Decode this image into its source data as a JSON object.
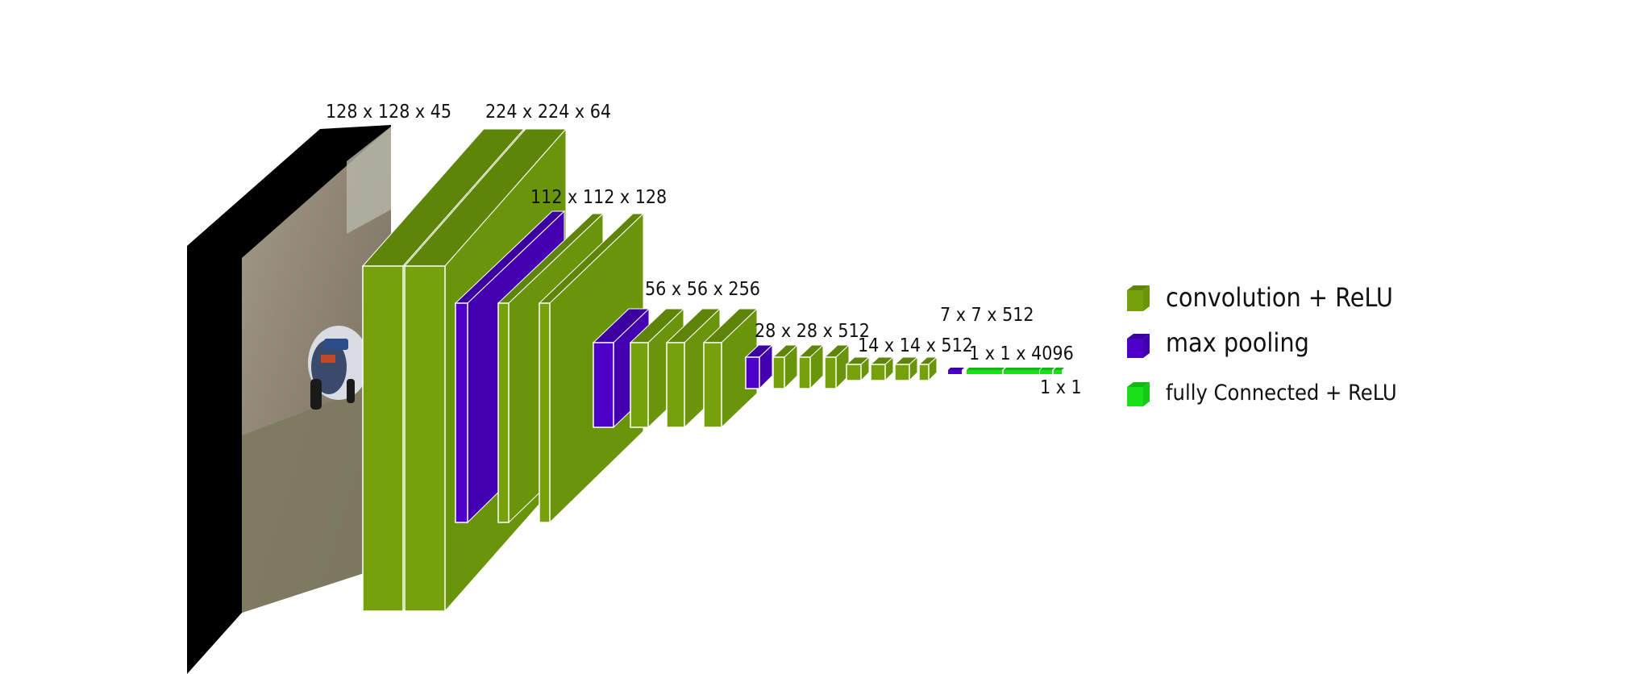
{
  "labels": {
    "input": "128 x 128 x 45",
    "conv1": "224 x 224 x 64",
    "conv2": "112 x 112 x 128",
    "conv3": "56 x 56 x 256",
    "conv4": "28 x 28 x 512",
    "conv5": "14 x 14 x 512",
    "pool5": "7 x 7 x 512",
    "fc": "1 x 1 x 4096",
    "output": "1 x 1"
  },
  "legend": [
    {
      "label": "convolution + ReLU",
      "color": "#76a10b"
    },
    {
      "label": "max pooling",
      "color": "#4c00c8"
    },
    {
      "label": "fully Connected + ReLU",
      "color": "#19e019"
    }
  ],
  "colors": {
    "conv": "#76a10b",
    "pool": "#4c00c8",
    "fc": "#19e019",
    "input_frame": "#000000"
  },
  "input_image": "rally-car-photo"
}
